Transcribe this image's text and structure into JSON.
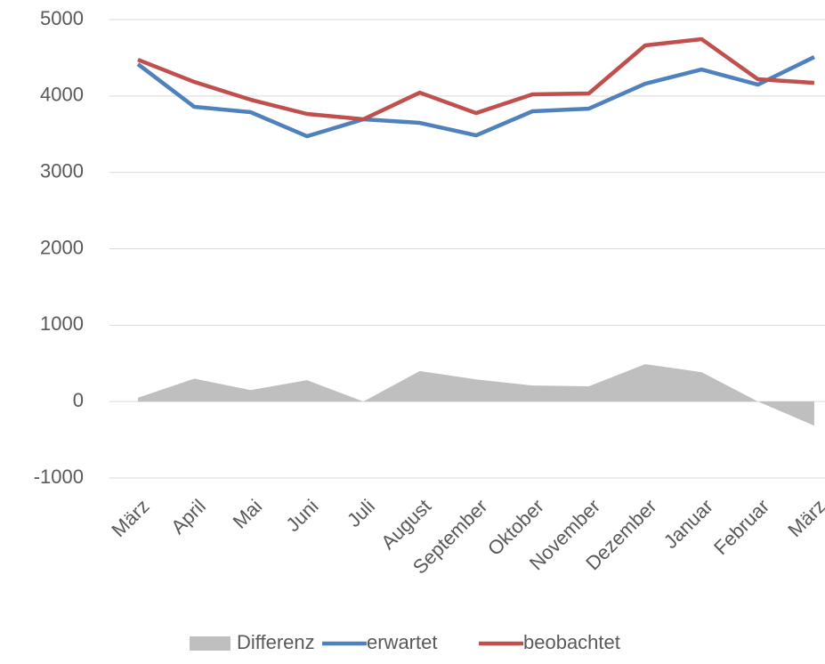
{
  "chart_data": {
    "type": "line",
    "categories": [
      "März",
      "April",
      "Mai",
      "Juni",
      "Juli",
      "August",
      "September",
      "Oktober",
      "November",
      "Dezember",
      "Januar",
      "Februar",
      "März"
    ],
    "series": [
      {
        "name": "Differenz",
        "type": "area",
        "color": "#bfbfbf",
        "values": [
          50,
          300,
          150,
          280,
          0,
          400,
          290,
          210,
          200,
          490,
          385,
          0,
          -315
        ]
      },
      {
        "name": "erwartet",
        "type": "line",
        "color": "#4f81bd",
        "values": [
          4417,
          3858,
          3788,
          3473,
          3695,
          3648,
          3485,
          3800,
          3834,
          4161,
          4347,
          4149,
          4510
        ]
      },
      {
        "name": "beobachtet",
        "type": "line",
        "color": "#c0504d",
        "values": [
          4475,
          4184,
          3951,
          3765,
          3695,
          4044,
          3776,
          4021,
          4033,
          4662,
          4744,
          4219,
          4172
        ]
      }
    ],
    "ylim": [
      -1000,
      5000
    ],
    "yticks": [
      -1000,
      0,
      1000,
      2000,
      3000,
      4000,
      5000
    ],
    "grid": true,
    "legend": "bottom"
  }
}
